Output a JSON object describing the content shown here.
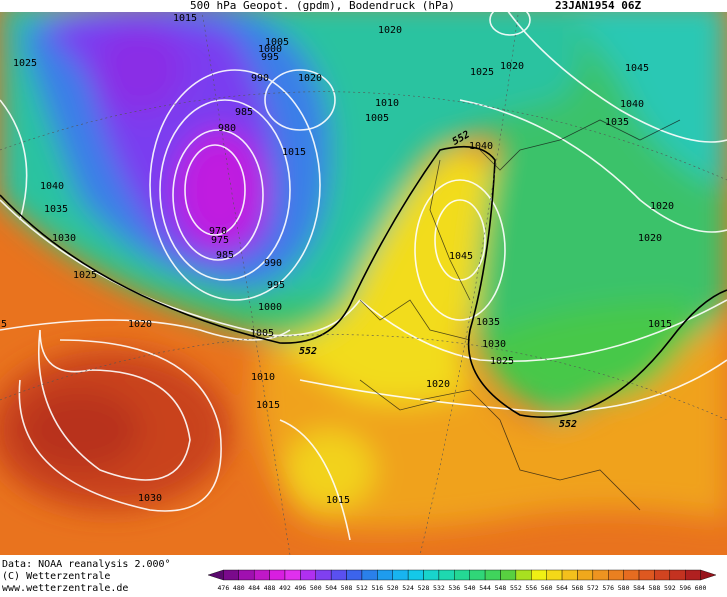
{
  "header": {
    "title": "500 hPa Geopot. (gpdm), Bodendruck (hPa)",
    "date": "23JAN1954 06Z"
  },
  "isobar_labels": [
    "1015",
    "1025",
    "1005",
    "1000",
    "995",
    "990",
    "1020",
    "985",
    "980",
    "1015",
    "1010",
    "1005",
    "1020",
    "1025",
    "1020",
    "1045",
    "1040",
    "1035",
    "1040",
    "1020",
    "1020",
    "1040",
    "1035",
    "1030",
    "970",
    "975",
    "985",
    "990",
    "995",
    "1045",
    "1025",
    "1000",
    "1020",
    "1005",
    "1035",
    "1030",
    "1025",
    "1015",
    "1010",
    "1020",
    "1015",
    "1030",
    "1015",
    "5"
  ],
  "geopotential_labels": [
    "552",
    "552",
    "552"
  ],
  "footer": {
    "source": "Data: NOAA reanalysis 2.000°",
    "copyright": "(C) Wetterzentrale",
    "url": "www.wetterzentrale.de"
  },
  "color_scale": {
    "ticks": [
      "476",
      "480",
      "484",
      "488",
      "492",
      "496",
      "500",
      "504",
      "508",
      "512",
      "516",
      "520",
      "524",
      "528",
      "532",
      "536",
      "540",
      "544",
      "548",
      "552",
      "556",
      "560",
      "564",
      "568",
      "572",
      "576",
      "580",
      "584",
      "588",
      "592",
      "596",
      "600"
    ]
  }
}
